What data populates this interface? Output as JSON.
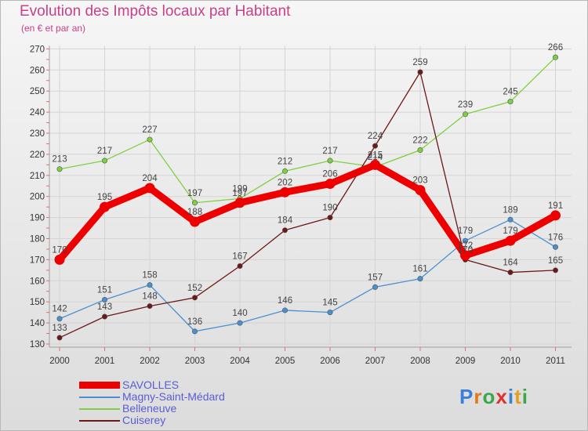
{
  "title": "Evolution des Impôts locaux par Habitant",
  "subtitle": "(en € et par an)",
  "logo": {
    "text": "Proxiti",
    "letters": [
      {
        "char": "P",
        "color": "#3a7fd8"
      },
      {
        "char": "r",
        "color": "#e07a1c"
      },
      {
        "char": "o",
        "color": "#3aa84a"
      },
      {
        "char": "x",
        "color": "#e03030"
      },
      {
        "char": "i",
        "color": "#3a7fd8"
      },
      {
        "char": "t",
        "color": "#e0a020"
      },
      {
        "char": "i",
        "color": "#3aa84a"
      }
    ]
  },
  "chart_data": {
    "type": "line",
    "title": "Evolution des Impôts locaux par Habitant",
    "subtitle": "(en € et par an)",
    "xlabel": "",
    "ylabel": "",
    "ylim": [
      130,
      270
    ],
    "yticks": [
      130,
      140,
      150,
      160,
      170,
      180,
      190,
      200,
      210,
      220,
      230,
      240,
      250,
      260,
      270
    ],
    "categories": [
      "2000",
      "2001",
      "2002",
      "2003",
      "2004",
      "2005",
      "2006",
      "2007",
      "2008",
      "2009",
      "2010",
      "2011"
    ],
    "legend_position": "bottom-left",
    "series": [
      {
        "name": "Magny-Saint-Médard",
        "color": "#4a90d0",
        "values": [
          142,
          151,
          158,
          136,
          140,
          146,
          145,
          157,
          161,
          179,
          189,
          176
        ]
      },
      {
        "name": "Belleneuve",
        "color": "#7fd040",
        "values": [
          213,
          217,
          227,
          197,
          199,
          212,
          217,
          214,
          222,
          239,
          245,
          266
        ]
      },
      {
        "name": "Cuiserey",
        "color": "#6b1818",
        "values": [
          133,
          143,
          148,
          152,
          167,
          184,
          190,
          224,
          259,
          170,
          164,
          165
        ]
      },
      {
        "name": "SAVOLLES",
        "color": "#ee0000",
        "values": [
          170,
          195,
          204,
          188,
          197,
          202,
          206,
          215,
          203,
          172,
          179,
          191
        ]
      }
    ],
    "legend_order": [
      "SAVOLLES",
      "Magny-Saint-Médard",
      "Belleneuve",
      "Cuiserey"
    ]
  }
}
